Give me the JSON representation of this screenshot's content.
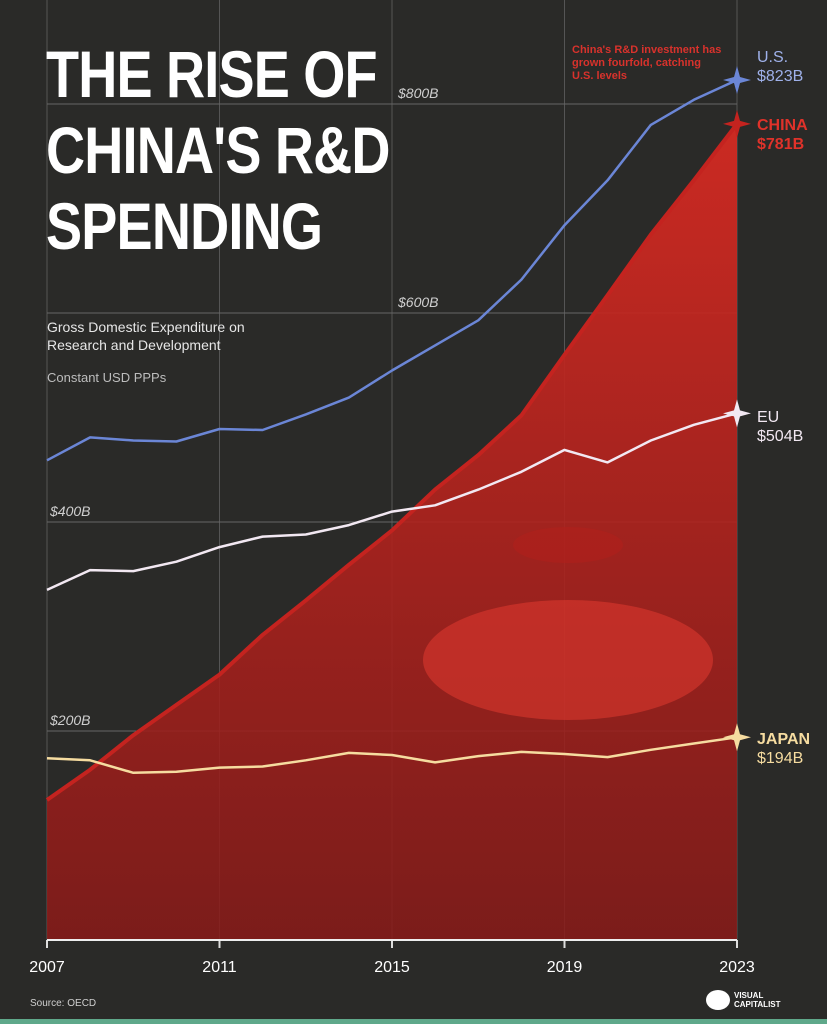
{
  "header": {
    "title": "THE RISE OF CHINA'S R&D SPENDING",
    "subtitle": "Gross Domestic Expenditure on Research and Development",
    "unit_note": "Constant USD PPPs"
  },
  "annotation": "China's R&D investment has grown fourfold, catching U.S. levels",
  "end_labels": [
    {
      "name": "U.S.",
      "value": "$823B",
      "color": "#6b86d6"
    },
    {
      "name": "CHINA",
      "value": "$781B",
      "color": "#e0322a"
    },
    {
      "name": "EU",
      "value": "$504B",
      "color": "#f2e8f2"
    },
    {
      "name": "JAPAN",
      "value": "$194B",
      "color": "#f6dca0"
    }
  ],
  "footer": {
    "source": "Source: OECD",
    "brand": "VISUAL CAPITALIST"
  },
  "chart_data": {
    "type": "line",
    "title": "The Rise of China's R&D Spending",
    "ylabel": "Gross Domestic Expenditure on R&D (Constant USD PPPs, $B)",
    "xlabel": "",
    "x": [
      2007,
      2008,
      2009,
      2010,
      2011,
      2012,
      2013,
      2014,
      2015,
      2016,
      2017,
      2018,
      2019,
      2020,
      2021,
      2022,
      2023
    ],
    "xticks": [
      "2007",
      "2011",
      "2015",
      "2019",
      "2023"
    ],
    "yticks": [
      {
        "value": 200,
        "label": "$200B"
      },
      {
        "value": 400,
        "label": "$400B"
      },
      {
        "value": 600,
        "label": "$600B"
      },
      {
        "value": 800,
        "label": "$800B"
      }
    ],
    "ylim": [
      0,
      900
    ],
    "xlim": [
      2007,
      2023
    ],
    "grid": true,
    "series": [
      {
        "name": "U.S.",
        "color": "#6b86d6",
        "values": [
          459,
          481,
          478,
          477,
          489,
          488,
          503,
          519,
          545,
          569,
          593,
          632,
          684,
          727,
          780,
          804,
          823
        ]
      },
      {
        "name": "China",
        "color": "#c4231f",
        "fill": true,
        "values": [
          134,
          163,
          196,
          225,
          254,
          292,
          325,
          359,
          392,
          431,
          464,
          502,
          560,
          617,
          675,
          727,
          781
        ]
      },
      {
        "name": "EU",
        "color": "#f2e8f2",
        "values": [
          335,
          354,
          353,
          362,
          376,
          386,
          388,
          397,
          410,
          416,
          431,
          448,
          469,
          457,
          478,
          493,
          504
        ]
      },
      {
        "name": "Japan",
        "color": "#f6dca0",
        "values": [
          174,
          172,
          160,
          161,
          165,
          166,
          172,
          179,
          177,
          170,
          176,
          180,
          178,
          175,
          182,
          188,
          194
        ]
      }
    ]
  }
}
